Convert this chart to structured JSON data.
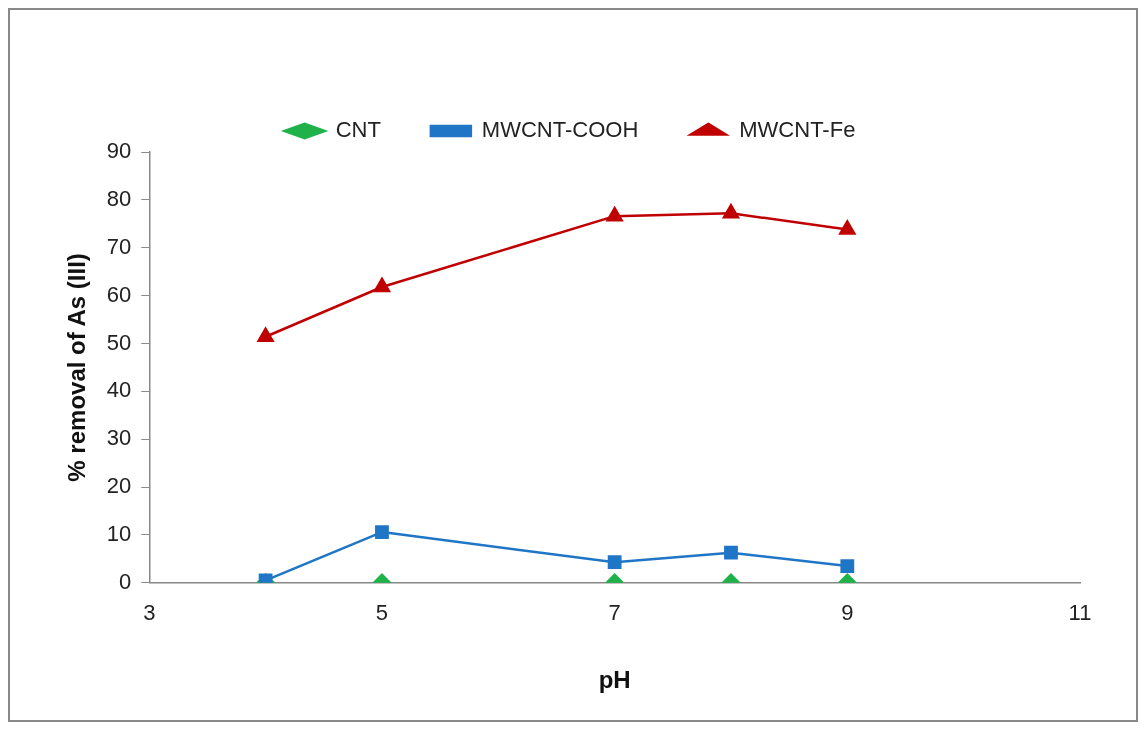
{
  "chart_data": {
    "type": "line",
    "xlabel": "pH",
    "ylabel": "% removal of As (III)",
    "xlim": [
      3,
      11
    ],
    "xticks": [
      3,
      5,
      7,
      9,
      11
    ],
    "ylim": [
      0,
      90
    ],
    "yticks": [
      0,
      10,
      20,
      30,
      40,
      50,
      60,
      70,
      80,
      90
    ],
    "grid": false,
    "legend": "top",
    "series": [
      {
        "name": "CNT",
        "type": "scatter",
        "color": "#1fb24a",
        "marker": "diamond",
        "x": [
          4,
          5,
          7,
          8,
          9
        ],
        "values": [
          0,
          0,
          0,
          0,
          0
        ]
      },
      {
        "name": "MWCNT-COOH",
        "color": "#1f76c6",
        "marker": "square",
        "x": [
          4,
          5,
          7,
          8,
          9
        ],
        "values": [
          0.5,
          10.6,
          4.3,
          6.3,
          3.5
        ]
      },
      {
        "name": "MWCNT-Fe",
        "color": "#c00000",
        "marker": "triangle",
        "x": [
          4,
          5,
          7,
          8,
          9
        ],
        "values": [
          51.4,
          61.8,
          76.6,
          77.2,
          73.8
        ]
      }
    ]
  }
}
